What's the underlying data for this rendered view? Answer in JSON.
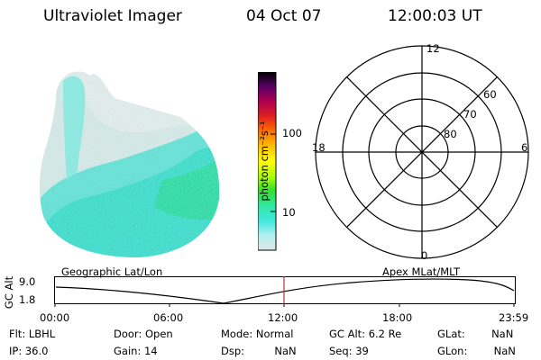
{
  "header": {
    "instrument": "Ultraviolet Imager",
    "date": "04 Oct 07",
    "time": "12:00:03 UT"
  },
  "colorbar": {
    "label": "photon cm⁻²s⁻¹",
    "ticks": [
      "100",
      "10"
    ],
    "colors": [
      "#000000",
      "#5a0066",
      "#b00050",
      "#e02020",
      "#ff7000",
      "#ffc000",
      "#ffff00",
      "#b0ff00",
      "#30e030",
      "#30e8a0",
      "#40e8e0",
      "#b0f0f0",
      "#e0e8e8"
    ]
  },
  "polar_plot": {
    "mlt_labels": {
      "top": "12",
      "left": "18",
      "right": "6",
      "bottom": "0"
    },
    "lat_labels": [
      "60",
      "70",
      "80"
    ]
  },
  "timeline": {
    "ylabel": "GC Alt",
    "y_ticks": [
      "9.0",
      "1.8"
    ],
    "left_title": "Geographic Lat/Lon",
    "right_title": "Apex MLat/MLT",
    "time_ticks": [
      "00:00",
      "06:00",
      "12:00",
      "18:00",
      "23:59"
    ],
    "current_time": "12:00",
    "marker_color": "#c03030"
  },
  "status": {
    "filter": {
      "label": "Flt:",
      "value": "LBHL"
    },
    "ip": {
      "label": "IP:",
      "value": "36.0"
    },
    "door": {
      "label": "Door:",
      "value": "Open"
    },
    "gain": {
      "label": "Gain:",
      "value": "14"
    },
    "mode": {
      "label": "Mode:",
      "value": "Normal"
    },
    "dsp": {
      "label": "Dsp:",
      "value": "NaN"
    },
    "gc_alt": {
      "label": "GC Alt:",
      "value": "6.2 Re"
    },
    "seq": {
      "label": "Seq:",
      "value": "39"
    },
    "glat": {
      "label": "GLat:",
      "value": "NaN"
    },
    "glon": {
      "label": "GLon:",
      "value": "NaN"
    }
  }
}
